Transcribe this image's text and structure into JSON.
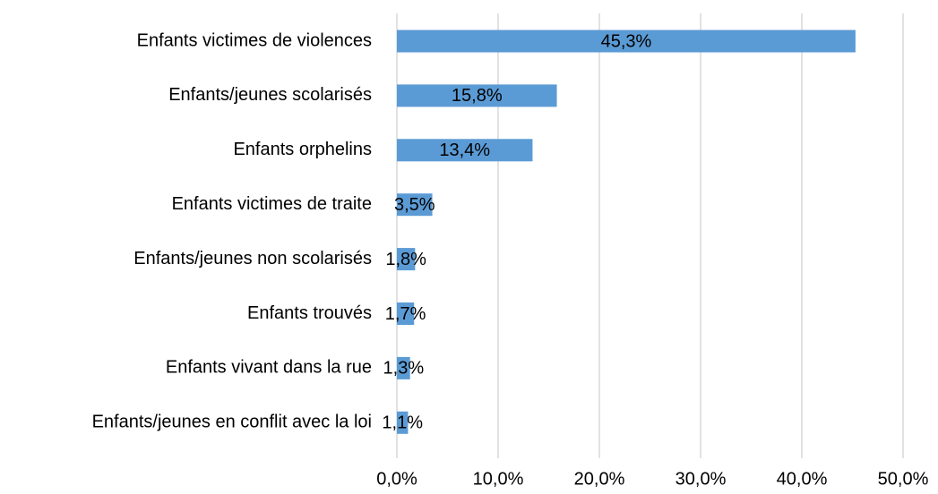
{
  "chart_data": {
    "type": "bar",
    "orientation": "horizontal",
    "categories": [
      "Enfants victimes de violences",
      "Enfants/jeunes scolarisés",
      "Enfants orphelins",
      "Enfants victimes de traite",
      "Enfants/jeunes non scolarisés",
      "Enfants trouvés",
      "Enfants vivant dans la rue",
      "Enfants/jeunes en conflit avec la loi"
    ],
    "values": [
      45.3,
      15.8,
      13.4,
      3.5,
      1.8,
      1.7,
      1.3,
      1.1
    ],
    "value_labels": [
      "45,3%",
      "15,8%",
      "13,4%",
      "3,5%",
      "1,8%",
      "1,7%",
      "1,3%",
      "1,1%"
    ],
    "color": "#5b9bd5",
    "xlim": [
      0,
      50
    ],
    "xticks": [
      {
        "value": 0,
        "label": "0,0%"
      },
      {
        "value": 10,
        "label": "10,0%"
      },
      {
        "value": 20,
        "label": "20,0%"
      },
      {
        "value": 30,
        "label": "30,0%"
      },
      {
        "value": 40,
        "label": "40,0%"
      },
      {
        "value": 50,
        "label": "50,0%"
      }
    ],
    "grid": true
  }
}
